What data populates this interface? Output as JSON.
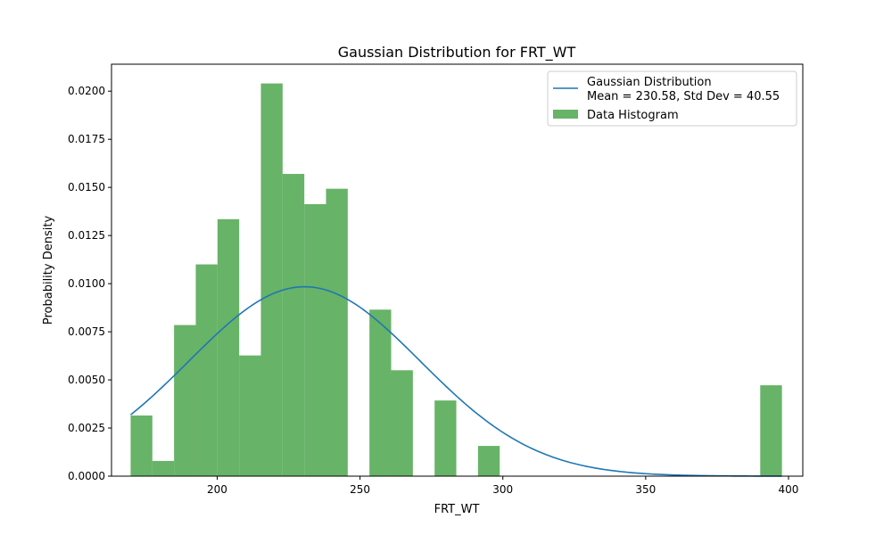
{
  "chart_data": {
    "type": "bar",
    "title": "Gaussian Distribution for FRT_WT",
    "xlabel": "FRT_WT",
    "ylabel": "Probability Density",
    "xlim": [
      163,
      405
    ],
    "ylim": [
      0,
      0.0214
    ],
    "x_ticks": [
      200,
      250,
      300,
      350,
      400
    ],
    "x_tick_labels": [
      "200",
      "250",
      "300",
      "350",
      "400"
    ],
    "y_ticks": [
      0,
      0.0025,
      0.005,
      0.0075,
      0.01,
      0.0125,
      0.015,
      0.0175,
      0.02
    ],
    "y_tick_labels": [
      "0.0000",
      "0.0025",
      "0.0050",
      "0.0075",
      "0.0100",
      "0.0125",
      "0.0150",
      "0.0175",
      "0.0200"
    ],
    "grid": false,
    "legend_position": "top-right",
    "histogram": {
      "name": "Data Histogram",
      "color": "#4ca64c",
      "bin_edges": [
        169.7,
        177.3,
        184.9,
        192.5,
        200.1,
        207.7,
        215.3,
        222.9,
        230.5,
        238.1,
        245.7,
        253.3,
        260.9,
        268.5,
        276.1,
        283.7,
        291.3,
        298.9,
        306.5,
        314.1,
        321.7,
        329.3,
        336.9,
        344.5,
        352.1,
        359.7,
        367.3,
        374.9,
        382.5,
        390.1,
        397.7
      ],
      "densities": [
        0.00315,
        0.00079,
        0.00785,
        0.011,
        0.01335,
        0.00627,
        0.0204,
        0.0157,
        0.01413,
        0.01493,
        0,
        0.00865,
        0.0055,
        0,
        0.00393,
        0,
        0.00157,
        0,
        0,
        0,
        0,
        0,
        0,
        0,
        0,
        0,
        0,
        0,
        0,
        0.00472
      ]
    },
    "series": [
      {
        "name": "Gaussian Distribution",
        "legend_line2": "Mean = 230.58, Std Dev = 40.55",
        "color": "#1f77b4",
        "mean": 230.58,
        "std": 40.55,
        "x_range": [
          169.7,
          397.7
        ]
      }
    ]
  }
}
